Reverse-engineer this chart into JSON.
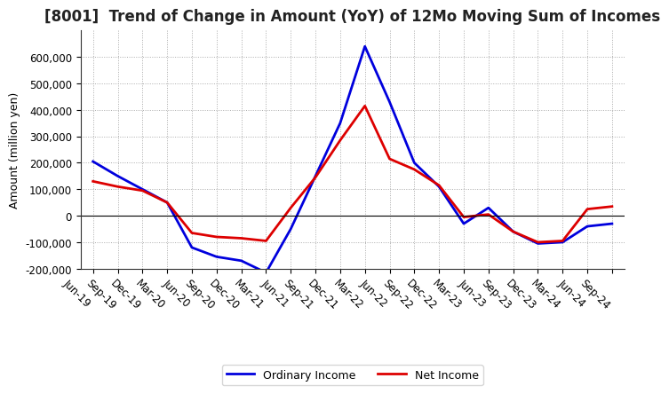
{
  "title": "[8001]  Trend of Change in Amount (YoY) of 12Mo Moving Sum of Incomes",
  "ylabel": "Amount (million yen)",
  "background_color": "#ffffff",
  "grid_color": "#aaaaaa",
  "line_color_ordinary": "#0000dd",
  "line_color_net": "#dd0000",
  "legend_ordinary": "Ordinary Income",
  "legend_net": "Net Income",
  "x_labels": [
    "Jun-19",
    "Sep-19",
    "Dec-19",
    "Mar-20",
    "Jun-20",
    "Sep-20",
    "Dec-20",
    "Mar-21",
    "Jun-21",
    "Sep-21",
    "Dec-21",
    "Mar-22",
    "Jun-22",
    "Sep-22",
    "Dec-22",
    "Mar-23",
    "Jun-23",
    "Sep-23",
    "Dec-23",
    "Mar-24",
    "Jun-24",
    "Sep-24"
  ],
  "ordinary_income": [
    205000,
    150000,
    100000,
    50000,
    -120000,
    -155000,
    -170000,
    -215000,
    -50000,
    150000,
    350000,
    640000,
    430000,
    200000,
    110000,
    -30000,
    30000,
    -60000,
    -105000,
    -100000,
    -40000,
    -30000
  ],
  "net_income": [
    130000,
    110000,
    95000,
    50000,
    -65000,
    -80000,
    -85000,
    -95000,
    30000,
    145000,
    285000,
    415000,
    215000,
    175000,
    115000,
    -5000,
    5000,
    -60000,
    -100000,
    -95000,
    25000,
    35000
  ],
  "ylim": [
    -200000,
    700000
  ],
  "yticks": [
    -200000,
    -100000,
    0,
    100000,
    200000,
    300000,
    400000,
    500000,
    600000
  ],
  "title_fontsize": 12,
  "axis_label_fontsize": 9,
  "tick_fontsize": 8.5,
  "line_width": 2.0
}
